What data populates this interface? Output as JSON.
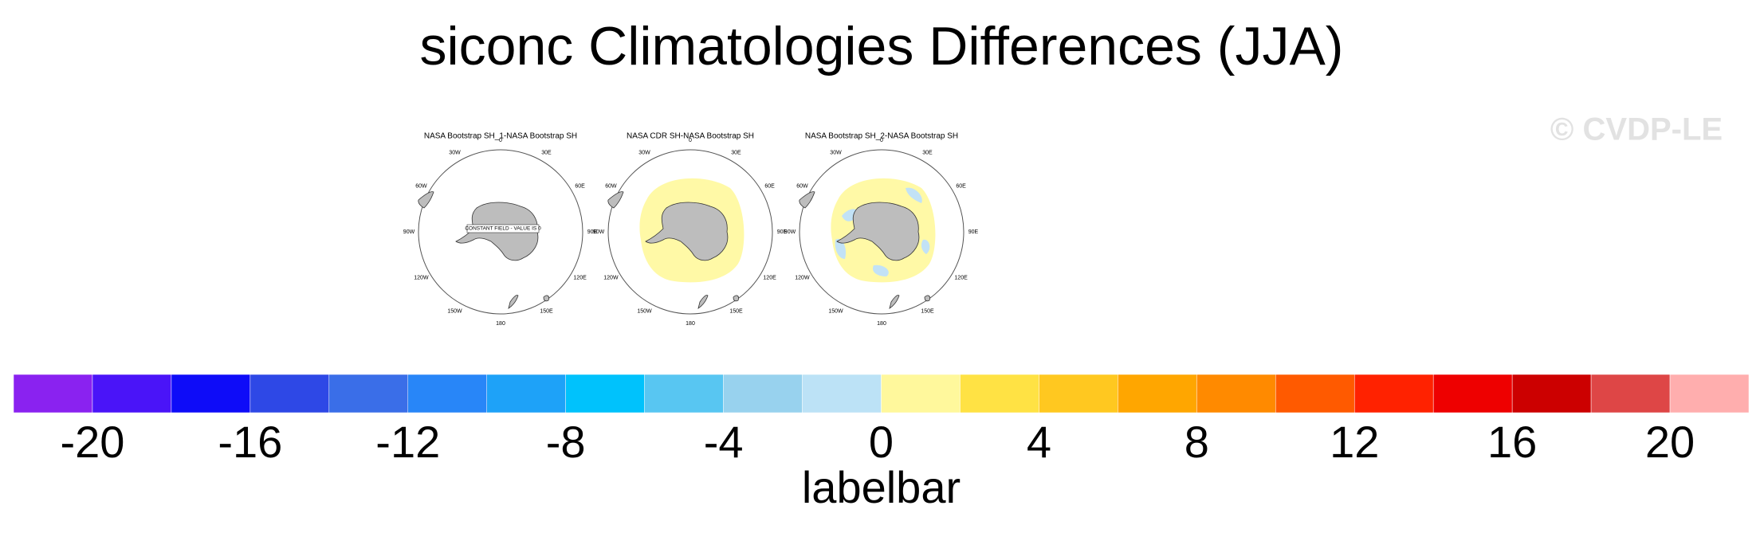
{
  "title": "siconc Climatologies Differences (JJA)",
  "watermark": "© CVDP-LE",
  "panels": [
    {
      "title": "NASA Bootstrap SH_1-NASA Bootstrap SH",
      "annotation": "CONSTANT FIELD - VALUE IS 0"
    },
    {
      "title": "NASA CDR SH-NASA Bootstrap SH"
    },
    {
      "title": "NASA Bootstrap SH_2-NASA Bootstrap SH"
    }
  ],
  "longitude_labels": [
    "0",
    "30E",
    "60E",
    "90E",
    "120E",
    "150E",
    "180",
    "150W",
    "120W",
    "90W",
    "60W",
    "30W"
  ],
  "chart_data": {
    "type": "colorbar",
    "xlabel": "labelbar",
    "levels": [
      -20,
      -18,
      -16,
      -14,
      -12,
      -10,
      -8,
      -6,
      -4,
      -2,
      0,
      2,
      4,
      6,
      8,
      10,
      12,
      14,
      16,
      18,
      20
    ],
    "colors": [
      "#8a22f0",
      "#4a14f8",
      "#0e0cf8",
      "#2e48e6",
      "#3a6ee8",
      "#2886f8",
      "#1ea2f8",
      "#00c2fc",
      "#58c6f2",
      "#98d2ee",
      "#bce2f6",
      "#fff89c",
      "#ffe244",
      "#ffc820",
      "#ffa600",
      "#ff8a00",
      "#ff5a00",
      "#ff2200",
      "#ee0000",
      "#cc0000",
      "#de4646",
      "#ffaeae"
    ],
    "xlim": [
      -22,
      22
    ],
    "xticks": [
      -20,
      -16,
      -12,
      -8,
      -4,
      0,
      4,
      8,
      12,
      16,
      20
    ]
  }
}
